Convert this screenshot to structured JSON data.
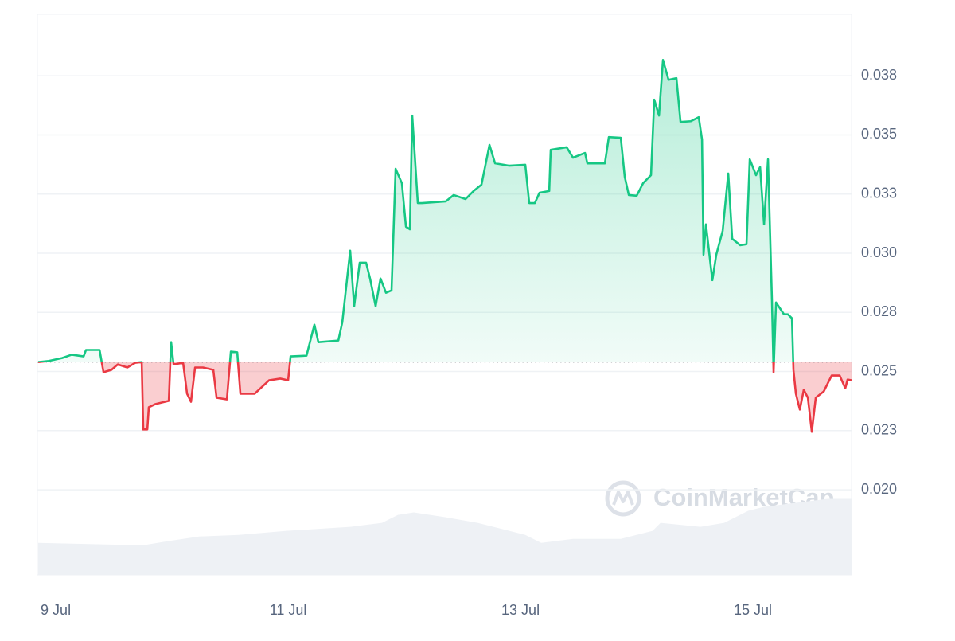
{
  "chart_data": {
    "type": "line",
    "watermark": "CoinMarketCap",
    "color_up": "#16c784",
    "color_down": "#ea3943",
    "baseline": 0.0254,
    "xlim": [
      8.842,
      15.849
    ],
    "ylim": [
      0.0164,
      0.0401
    ],
    "xticks": [
      {
        "value": 9,
        "label": "9 Jul"
      },
      {
        "value": 11,
        "label": "11 Jul"
      },
      {
        "value": 13,
        "label": "13 Jul"
      },
      {
        "value": 15,
        "label": "15 Jul"
      }
    ],
    "yticks": [
      {
        "value": 0.02,
        "label": "0.020"
      },
      {
        "value": 0.0225,
        "label": "0.023"
      },
      {
        "value": 0.025,
        "label": "0.025"
      },
      {
        "value": 0.0275,
        "label": "0.028"
      },
      {
        "value": 0.03,
        "label": "0.030"
      },
      {
        "value": 0.0325,
        "label": "0.033"
      },
      {
        "value": 0.035,
        "label": "0.035"
      },
      {
        "value": 0.0375,
        "label": "0.038"
      }
    ],
    "grid": true,
    "x": [
      8.849,
      8.932,
      9.055,
      9.137,
      9.24,
      9.26,
      9.377,
      9.411,
      9.479,
      9.534,
      9.616,
      9.685,
      9.74,
      9.753,
      9.788,
      9.801,
      9.856,
      9.973,
      9.993,
      10.014,
      10.096,
      10.13,
      10.164,
      10.199,
      10.267,
      10.356,
      10.384,
      10.473,
      10.507,
      10.562,
      10.589,
      10.712,
      10.836,
      10.932,
      11.0,
      11.021,
      11.158,
      11.226,
      11.26,
      11.432,
      11.466,
      11.534,
      11.568,
      11.616,
      11.671,
      11.705,
      11.753,
      11.795,
      11.842,
      11.89,
      11.925,
      11.979,
      12.014,
      12.048,
      12.068,
      12.116,
      12.151,
      12.356,
      12.425,
      12.527,
      12.596,
      12.664,
      12.733,
      12.781,
      12.904,
      13.041,
      13.075,
      13.123,
      13.164,
      13.247,
      13.26,
      13.397,
      13.452,
      13.555,
      13.575,
      13.726,
      13.76,
      13.863,
      13.897,
      13.932,
      14.0,
      14.055,
      14.123,
      14.151,
      14.192,
      14.226,
      14.274,
      14.342,
      14.377,
      14.466,
      14.534,
      14.562,
      14.575,
      14.596,
      14.651,
      14.685,
      14.74,
      14.788,
      14.822,
      14.89,
      14.945,
      14.973,
      15.027,
      15.062,
      15.096,
      15.13,
      15.164,
      15.178,
      15.199,
      15.267,
      15.301,
      15.336,
      15.349,
      15.37,
      15.404,
      15.438,
      15.473,
      15.507,
      15.541,
      15.61,
      15.678,
      15.747,
      15.795,
      15.815,
      15.849
    ],
    "values": [
      0.0254,
      0.02544,
      0.02557,
      0.02571,
      0.02564,
      0.02591,
      0.02591,
      0.02497,
      0.02507,
      0.0253,
      0.02517,
      0.02537,
      0.0254,
      0.02255,
      0.02255,
      0.02349,
      0.02362,
      0.02376,
      0.02624,
      0.0253,
      0.02537,
      0.02406,
      0.02372,
      0.02517,
      0.02517,
      0.02507,
      0.02389,
      0.02382,
      0.02584,
      0.02581,
      0.02406,
      0.02406,
      0.02463,
      0.0247,
      0.02463,
      0.02564,
      0.02567,
      0.02698,
      0.02624,
      0.02631,
      0.02708,
      0.03011,
      0.02776,
      0.0296,
      0.0296,
      0.02893,
      0.02776,
      0.02893,
      0.02833,
      0.02843,
      0.03357,
      0.03296,
      0.03112,
      0.03101,
      0.03582,
      0.03212,
      0.03212,
      0.03219,
      0.03246,
      0.03229,
      0.03263,
      0.0329,
      0.03458,
      0.0338,
      0.0337,
      0.03374,
      0.03212,
      0.03212,
      0.03256,
      0.03263,
      0.03437,
      0.03448,
      0.03404,
      0.03424,
      0.0338,
      0.0338,
      0.03491,
      0.03488,
      0.03323,
      0.03246,
      0.03243,
      0.03296,
      0.0333,
      0.03649,
      0.03582,
      0.03817,
      0.03733,
      0.0374,
      0.03555,
      0.03558,
      0.03575,
      0.03481,
      0.02994,
      0.03122,
      0.02886,
      0.02994,
      0.03095,
      0.03337,
      0.03061,
      0.03034,
      0.03038,
      0.03397,
      0.0333,
      0.03364,
      0.03122,
      0.03397,
      0.02799,
      0.02497,
      0.02792,
      0.02742,
      0.02742,
      0.02725,
      0.02507,
      0.02406,
      0.02339,
      0.02423,
      0.02389,
      0.02245,
      0.02389,
      0.02416,
      0.02483,
      0.02483,
      0.02429,
      0.02466,
      0.02463
    ],
    "volume": {
      "color": "#eef1f5",
      "lim": [
        0,
        350
      ],
      "x": [
        8.849,
        9.753,
        9.959,
        10.233,
        10.575,
        10.986,
        11.534,
        11.808,
        11.945,
        12.082,
        12.356,
        12.63,
        13.041,
        13.178,
        13.452,
        13.863,
        14.137,
        14.205,
        14.548,
        14.753,
        14.959,
        15.096,
        15.37,
        15.644,
        15.849
      ],
      "values": [
        20,
        18.5,
        21,
        24,
        25,
        27.5,
        30,
        32.5,
        37.5,
        39,
        36,
        32.5,
        25,
        20,
        22.5,
        22.5,
        27.5,
        32.5,
        30,
        32.5,
        40,
        42.5,
        45,
        47.5,
        47.5
      ]
    }
  }
}
